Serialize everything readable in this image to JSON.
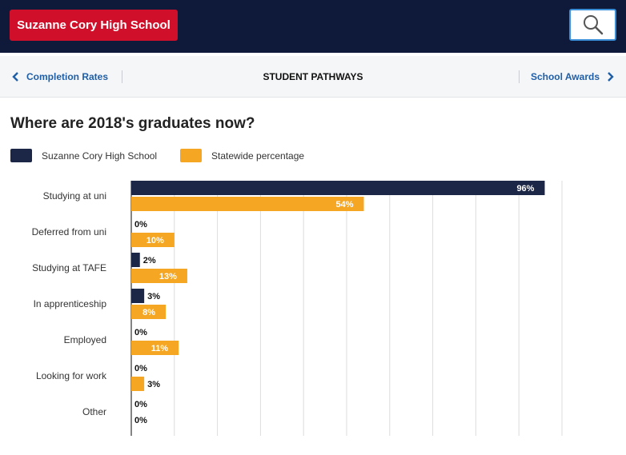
{
  "header": {
    "school_name": "Suzanne Cory High School",
    "search_icon": "search-icon"
  },
  "nav": {
    "prev_label": "Completion Rates",
    "title": "STUDENT PATHWAYS",
    "next_label": "School Awards"
  },
  "colors": {
    "header_bg": "#0f1a3a",
    "brand_red": "#d0102a",
    "school_series": "#1c2747",
    "state_series": "#f5a623",
    "link": "#1f5fa8"
  },
  "chart_data": {
    "type": "bar",
    "orientation": "horizontal",
    "title": "Where are 2018's graduates now?",
    "categories": [
      "Studying at uni",
      "Deferred from uni",
      "Studying at TAFE",
      "In apprenticeship",
      "Employed",
      "Looking for work",
      "Other"
    ],
    "series": [
      {
        "name": "Suzanne Cory High School",
        "color": "#1c2747",
        "values": [
          96,
          0,
          2,
          3,
          0,
          0,
          0
        ]
      },
      {
        "name": "Statewide percentage",
        "color": "#f5a623",
        "values": [
          54,
          10,
          13,
          8,
          11,
          3,
          0
        ]
      }
    ],
    "value_suffix": "%",
    "xlim": [
      0,
      100
    ],
    "grid": true,
    "legend_position": "top-left"
  }
}
